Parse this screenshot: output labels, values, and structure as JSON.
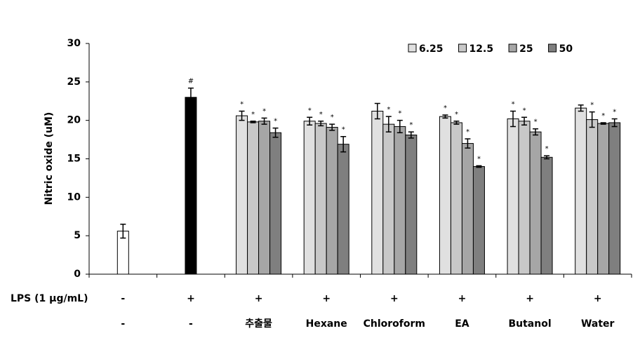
{
  "chart_data": {
    "type": "bar",
    "y_label": "Nitric oxide (uM)",
    "ylim": [
      0,
      30
    ],
    "yticks": [
      0,
      5,
      10,
      15,
      20,
      25,
      30
    ],
    "row_label": "LPS (1 μg/mL)",
    "lps": [
      "-",
      "+",
      "+",
      "+",
      "+",
      "+",
      "+",
      "+"
    ],
    "categories": [
      "-",
      "-",
      "추출물",
      "Hexane",
      "Chloroform",
      "EA",
      "Butanol",
      "Water"
    ],
    "series": [
      {
        "color": "#ffffff",
        "values": [
          5.6,
          null,
          null,
          null,
          null,
          null,
          null,
          null
        ],
        "errors": [
          0.9,
          null,
          null,
          null,
          null,
          null,
          null,
          null
        ],
        "labels": [
          null,
          null,
          null,
          null,
          null,
          null,
          null,
          null
        ]
      },
      {
        "color": "#000000",
        "values": [
          null,
          23.0,
          null,
          null,
          null,
          null,
          null,
          null
        ],
        "errors": [
          null,
          1.2,
          null,
          null,
          null,
          null,
          null,
          null
        ],
        "labels": [
          null,
          "#",
          null,
          null,
          null,
          null,
          null,
          null
        ]
      },
      {
        "name": "6.25",
        "color": "#e0e0e0",
        "values": [
          null,
          null,
          20.6,
          19.9,
          21.2,
          20.5,
          20.2,
          21.6
        ],
        "errors": [
          null,
          null,
          0.6,
          0.5,
          1.0,
          0.2,
          1.0,
          0.4
        ],
        "labels": [
          null,
          null,
          "*",
          "*",
          null,
          "*",
          "*",
          null
        ]
      },
      {
        "name": "12.5",
        "color": "#c8c8c8",
        "values": [
          null,
          null,
          19.8,
          19.6,
          19.5,
          19.7,
          19.9,
          20.1
        ],
        "errors": [
          null,
          null,
          0.1,
          0.3,
          1.0,
          0.2,
          0.5,
          1.0
        ],
        "labels": [
          null,
          null,
          "*",
          "*",
          "*",
          "*",
          "*",
          "*"
        ]
      },
      {
        "name": "25",
        "color": "#a6a6a6",
        "values": [
          null,
          null,
          19.9,
          19.1,
          19.2,
          17.0,
          18.5,
          19.6
        ],
        "errors": [
          null,
          null,
          0.4,
          0.4,
          0.8,
          0.6,
          0.4,
          0.1
        ],
        "labels": [
          null,
          null,
          "*",
          "*",
          "*",
          "*",
          "*",
          "*"
        ]
      },
      {
        "name": "50",
        "color": "#7f7f7f",
        "values": [
          null,
          null,
          18.4,
          16.9,
          18.1,
          14.0,
          15.2,
          19.7
        ],
        "errors": [
          null,
          null,
          0.6,
          1.0,
          0.4,
          0.1,
          0.2,
          0.5
        ],
        "labels": [
          null,
          null,
          "*",
          "*",
          "*",
          "*",
          "*",
          "*"
        ]
      }
    ]
  }
}
